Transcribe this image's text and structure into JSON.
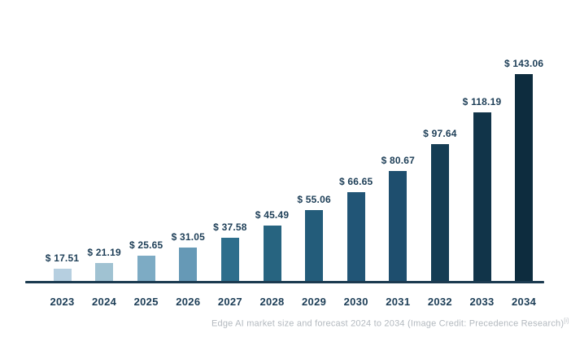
{
  "chart_data": {
    "type": "bar",
    "title": "",
    "xlabel": "",
    "ylabel": "",
    "categories": [
      "2023",
      "2024",
      "2025",
      "2026",
      "2027",
      "2028",
      "2029",
      "2030",
      "2031",
      "2032",
      "2033",
      "2034"
    ],
    "values": [
      17.51,
      21.19,
      25.65,
      31.05,
      37.58,
      45.49,
      55.06,
      66.65,
      80.67,
      97.64,
      118.19,
      143.06
    ],
    "value_labels": [
      "$ 17.51",
      "$ 21.19",
      "$ 25.65",
      "$ 31.05",
      "$ 37.58",
      "$ 45.49",
      "$ 55.06",
      "$ 66.65",
      "$ 80.67",
      "$ 97.64",
      "$ 118.19",
      "$ 143.06"
    ],
    "bar_colors": [
      "#b6cfe0",
      "#a0c2d2",
      "#7dabc4",
      "#6699b6",
      "#2d6e8c",
      "#276480",
      "#235c7a",
      "#215576",
      "#1e4e6e",
      "#153d54",
      "#113449",
      "#0d2c3e"
    ],
    "grid": false,
    "legend": false,
    "label_color": "#1d3e57",
    "axis_color": "#1b3a50",
    "background_color": "#ffffff"
  },
  "caption": {
    "text": "Edge AI market size and forecast 2024 to 2034 (Image Credit: Precedence Research)",
    "superscript": "[i]",
    "color": "#b3b9bf"
  }
}
